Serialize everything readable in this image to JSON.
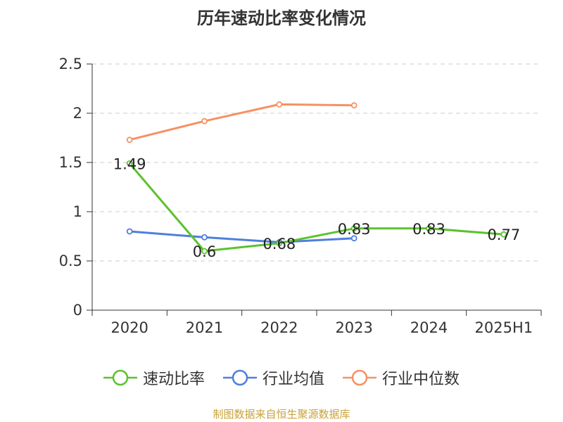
{
  "chart_data": {
    "type": "line",
    "title": "历年速动比率变化情况",
    "categories": [
      "2020",
      "2021",
      "2022",
      "2023",
      "2024",
      "2025H1"
    ],
    "ylim": [
      0,
      2.5
    ],
    "yticks": [
      "0",
      "0.5",
      "1",
      "1.5",
      "2",
      "2.5"
    ],
    "grid": true,
    "legend_position": "bottom",
    "series": [
      {
        "name": "速动比率",
        "color": "#5cc22e",
        "values": [
          1.49,
          0.6,
          0.68,
          0.83,
          0.83,
          0.77
        ],
        "labels": [
          "1.49",
          "0.6",
          "0.68",
          "0.83",
          "0.83",
          "0.77"
        ],
        "show_labels": true
      },
      {
        "name": "行业均值",
        "color": "#4f7fdc",
        "values": [
          0.8,
          0.74,
          0.69,
          0.73,
          null,
          null
        ],
        "show_labels": false
      },
      {
        "name": "行业中位数",
        "color": "#f59262",
        "values": [
          1.73,
          1.92,
          2.09,
          2.08,
          null,
          null
        ],
        "show_labels": false
      }
    ]
  },
  "source": "制图数据来自恒生聚源数据库"
}
